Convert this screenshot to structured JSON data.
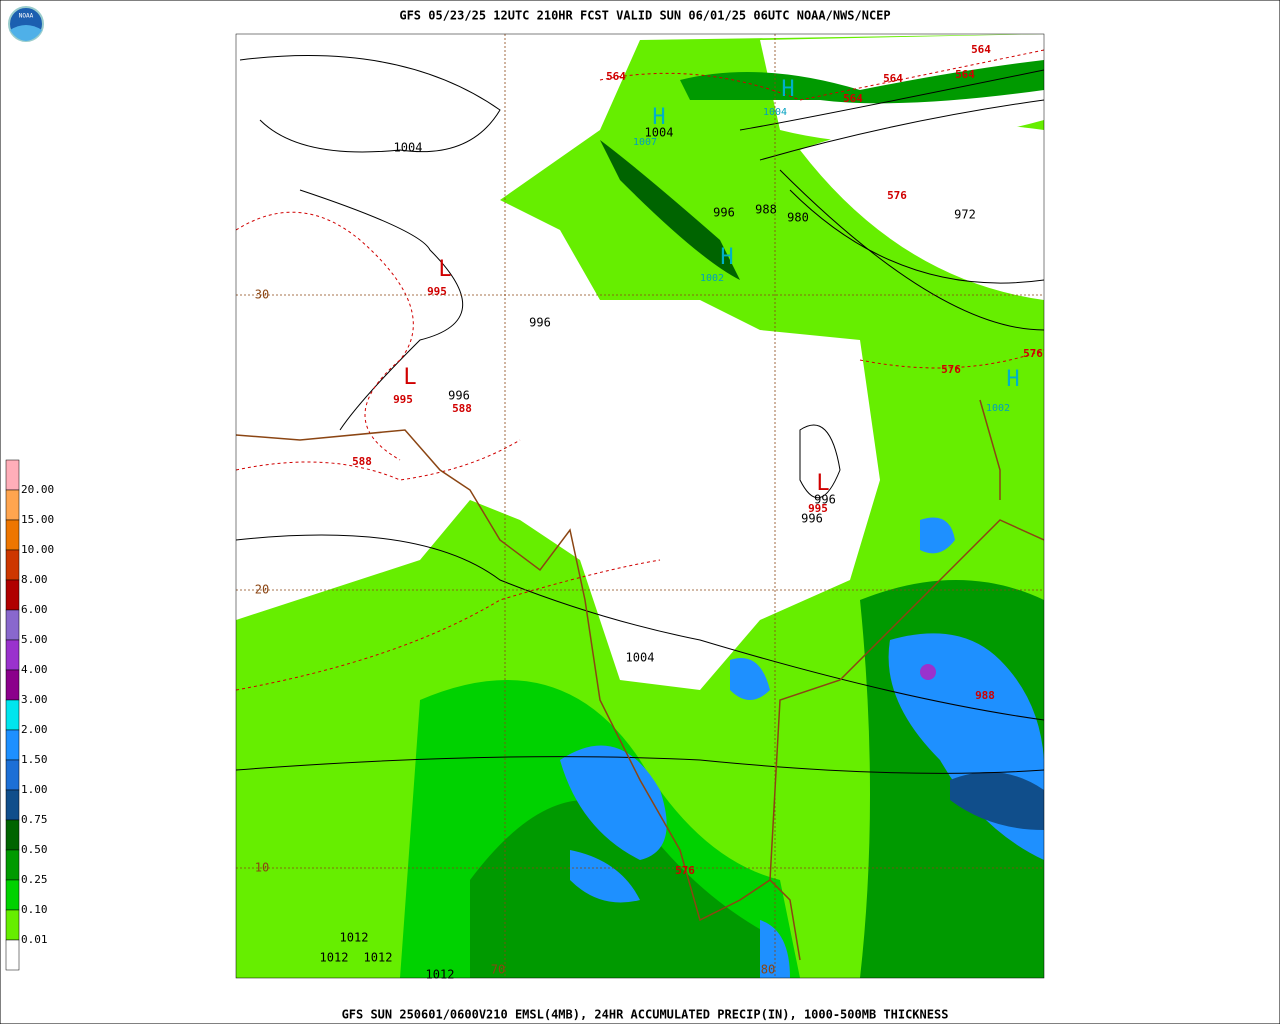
{
  "header": {
    "title": "GFS 05/23/25 12UTC 210HR FCST VALID SUN 06/01/25 06UTC NOAA/NWS/NCEP",
    "logo_text": "NOAA"
  },
  "footer": {
    "caption": "GFS SUN 250601/0600V210 EMSL(4MB), 24HR ACCUMULATED PRECIP(IN), 1000-500MB THICKNESS"
  },
  "legend": {
    "labels": [
      "20.00",
      "15.00",
      "10.00",
      "8.00",
      "6.00",
      "5.00",
      "4.00",
      "3.00",
      "2.00",
      "1.50",
      "1.00",
      "0.75",
      "0.50",
      "0.25",
      "0.10",
      "0.01"
    ],
    "colors": [
      "#ffaeb9",
      "#ffa54f",
      "#ee7600",
      "#cd3700",
      "#b00000",
      "#8968cd",
      "#9a32cd",
      "#8b008b",
      "#00e5ee",
      "#1e90ff",
      "#1c6fd6",
      "#104e8b",
      "#006400",
      "#009a00",
      "#00d200",
      "#66ee00",
      "#ffffff"
    ]
  },
  "map": {
    "labels": [
      "1004",
      "L",
      "995",
      "996",
      "L",
      "995",
      "996",
      "588",
      "588",
      "564",
      "H",
      "1004",
      "1007",
      "H",
      "1004",
      "564",
      "564",
      "564",
      "564",
      "996",
      "988",
      "980",
      "576",
      "972",
      "H",
      "1002",
      "576",
      "576",
      "H",
      "1002",
      "L",
      "996",
      "995",
      "996",
      "1004",
      "988",
      "576",
      "1012",
      "1012",
      "1012",
      "1012",
      "70",
      "80",
      "30",
      "20",
      "10"
    ]
  }
}
